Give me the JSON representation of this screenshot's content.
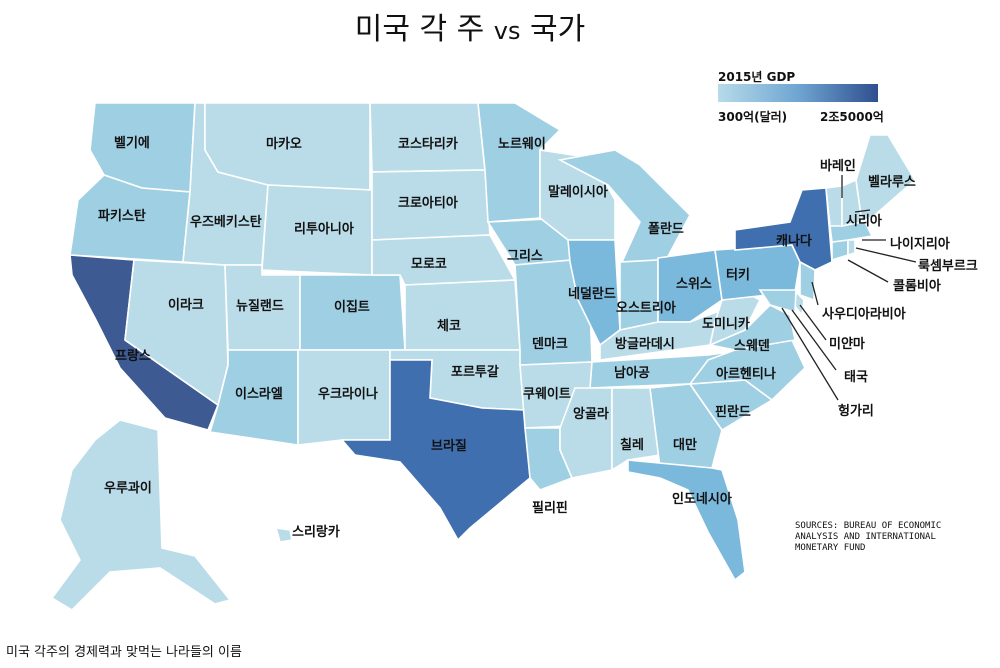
{
  "title": {
    "main": "미국 각 주",
    "vs": "vs",
    "rest": "국가"
  },
  "legend": {
    "title": "2015년 GDP",
    "min": "300억(달러)",
    "max": "2조5000억",
    "low_color": "#b6dbe9",
    "mid_color": "#6fa5d2",
    "high_color": "#2f4f8f"
  },
  "sources": [
    "SOURCES: BUREAU OF ECONOMIC",
    "ANALYSIS AND INTERNATIONAL",
    "MONETARY FUND"
  ],
  "caption": "미국 각주의 경제력과 맞먹는 나라들의 이름",
  "colors": {
    "pale": "#b9dce8",
    "light": "#9fcfe3",
    "mid": "#7bb9dc",
    "medium": "#5f9ccf",
    "dark": "#3f6fae",
    "darkest": "#3d5a92",
    "background": "#ffffff"
  },
  "states": {
    "wa": "벨기에",
    "or": "파키스탄",
    "ca": "프랑스",
    "nv": "이라크",
    "id": "우즈베키스탄",
    "mt": "마카오",
    "wy": "리투아니아",
    "ut": "뉴질랜드",
    "co": "이집트",
    "az": "이스라엘",
    "nm": "우크라이나",
    "nd": "코스타리카",
    "sd": "크로아티아",
    "ne": "모로코",
    "ks": "체코",
    "ok": "포르투갈",
    "tx": "브라질",
    "mn": "노르웨이",
    "ia": "그리스",
    "mo": "덴마크",
    "ar": "쿠웨이트",
    "la": "필리핀",
    "wi": "말레이시아",
    "il": "네덜란드",
    "mi": "폴란드",
    "in": "오스트리아",
    "oh": "스위스",
    "ky": "방글라데시",
    "tn": "남아공",
    "ms": "앙골라",
    "al": "칠레",
    "ga": "대만",
    "fl": "인도네시아",
    "sc": "핀란드",
    "nc": "아르헨티나",
    "va": "스웨덴",
    "wv": "도미니카",
    "pa": "터키",
    "ny": "캐나다",
    "vt": "바레인",
    "nh": "시리아",
    "me": "벨라루스",
    "ma": "나이지리아",
    "ri": "룩셈부르크",
    "ct": "콜롬비아",
    "nj": "사우디아라비아",
    "de": "미얀마",
    "md": "태국",
    "dc": "헝가리",
    "ak": "우루과이",
    "hi": "스리랑카"
  }
}
